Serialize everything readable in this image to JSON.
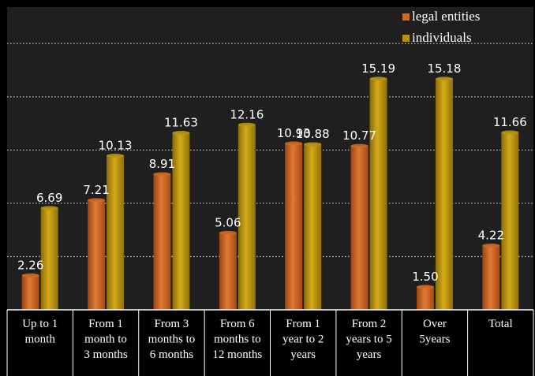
{
  "chart_data": {
    "type": "bar",
    "categories": [
      [
        "Up to 1",
        "month"
      ],
      [
        "From 1",
        "month to",
        "3 months"
      ],
      [
        "From 3",
        "months to",
        "6 months"
      ],
      [
        "From 6",
        "months to",
        "12 months"
      ],
      [
        "From 1",
        "year to 2",
        "years"
      ],
      [
        "From 2",
        "years to 5",
        "years"
      ],
      [
        "Over",
        "5years"
      ],
      [
        "Total"
      ]
    ],
    "series": [
      {
        "name": "legal entities",
        "color": "#d2691e",
        "values": [
          2.26,
          7.21,
          8.91,
          5.06,
          10.93,
          10.77,
          1.5,
          4.22
        ],
        "labels": [
          "2.26",
          "7.21",
          "8.91",
          "5.06",
          "10.93",
          "10.77",
          "1.50",
          "4.22"
        ]
      },
      {
        "name": "individuals",
        "color": "#b8930f",
        "values": [
          6.69,
          10.13,
          11.63,
          12.16,
          10.88,
          15.19,
          15.18,
          11.66
        ],
        "labels": [
          "6.69",
          "10.13",
          "11.63",
          "12.16",
          "10.88",
          "15.19",
          "15.18",
          "11.66"
        ]
      }
    ],
    "title": "",
    "xlabel": "",
    "ylabel": "",
    "ylim": [
      0,
      18
    ],
    "grid": true,
    "legend": "top-right",
    "background": "#000000"
  }
}
